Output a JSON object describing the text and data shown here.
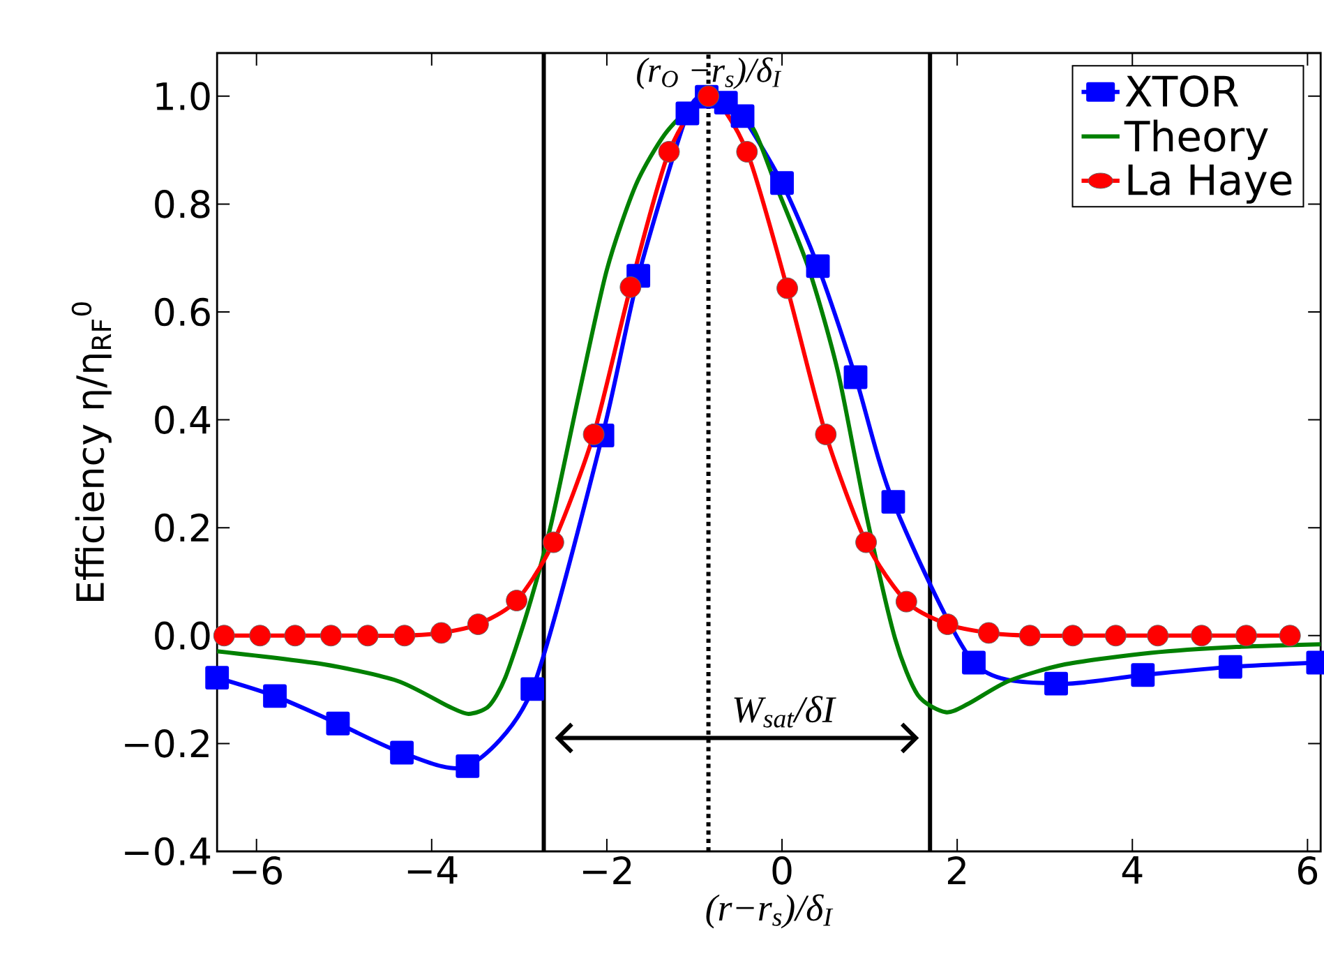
{
  "chart_data": {
    "type": "line",
    "xlabel": "(r−r$_{s}$)/δ$_{I}$",
    "ylabel": "Efficiency η/η$_{RF}$$^{0}$",
    "xlim": [
      -6.45,
      6.15
    ],
    "ylim": [
      -0.4,
      1.08
    ],
    "xticks": [
      {
        "value": -6,
        "label": "−6"
      },
      {
        "value": -4,
        "label": "−4"
      },
      {
        "value": -2,
        "label": "−2"
      },
      0,
      2,
      4,
      6
    ],
    "yticks": [
      {
        "value": -0.4,
        "label": "−0.4"
      },
      {
        "value": -0.2,
        "label": "−0.2"
      },
      "0.0",
      0.2,
      0.4,
      0.6,
      0.8,
      "1.0"
    ],
    "legend": "top right",
    "series": [
      {
        "name": "XTOR",
        "color": "#0000ff",
        "marker": "square",
        "x": [
          -6.45,
          -5.79,
          -5.07,
          -4.34,
          -3.59,
          -2.85,
          -2.05,
          -1.64,
          -1.08,
          -0.86,
          -0.64,
          -0.45,
          0.0,
          0.41,
          0.84,
          1.27,
          2.19,
          3.13,
          4.12,
          5.12,
          6.12
        ],
        "values": [
          -0.078,
          -0.112,
          -0.163,
          -0.217,
          -0.242,
          -0.099,
          0.371,
          0.667,
          0.968,
          0.999,
          0.988,
          0.963,
          0.839,
          0.685,
          0.479,
          0.248,
          -0.05,
          -0.089,
          -0.073,
          -0.058,
          -0.05
        ]
      },
      {
        "name": "Theory",
        "color": "#008000",
        "marker": "none",
        "x": [
          -6.45,
          -5.24,
          -4.39,
          -3.81,
          -3.58,
          -3.35,
          -3.16,
          -2.9,
          -2.64,
          -2.32,
          -2.0,
          -1.67,
          -1.34,
          -1.02,
          -0.69,
          -0.33,
          -0.07,
          0.31,
          0.64,
          0.96,
          1.29,
          1.55,
          1.87,
          2.13,
          2.59,
          3.24,
          4.21,
          5.19,
          6.15
        ],
        "values": [
          -0.029,
          -0.053,
          -0.084,
          -0.131,
          -0.145,
          -0.131,
          -0.078,
          0.048,
          0.204,
          0.446,
          0.678,
          0.835,
          0.929,
          0.981,
          0.997,
          0.94,
          0.835,
          0.678,
          0.488,
          0.226,
          -0.005,
          -0.11,
          -0.142,
          -0.126,
          -0.084,
          -0.053,
          -0.032,
          -0.021,
          -0.016
        ]
      },
      {
        "name": "La Haye",
        "color": "#ff0000",
        "marker": "circle",
        "x": [
          -6.37,
          -5.96,
          -5.56,
          -5.15,
          -4.73,
          -4.31,
          -3.89,
          -3.47,
          -3.03,
          -2.61,
          -2.15,
          -1.73,
          -1.29,
          -0.84,
          -0.4,
          0.06,
          0.5,
          0.96,
          1.42,
          1.89,
          2.36,
          2.83,
          3.32,
          3.81,
          4.29,
          4.79,
          5.3,
          5.8
        ],
        "values": [
          0.0,
          0.0,
          0.0,
          0.0,
          0.0,
          0.0,
          0.005,
          0.021,
          0.065,
          0.173,
          0.373,
          0.646,
          0.897,
          1.0,
          0.897,
          0.644,
          0.373,
          0.173,
          0.063,
          0.021,
          0.005,
          0.0,
          0.0,
          0.0,
          0.0,
          0.0,
          0.0,
          0.0
        ]
      }
    ],
    "ref_lines": [
      {
        "axis": "x",
        "value": -2.72,
        "color": "#000000",
        "line_style": "solid"
      },
      {
        "axis": "x",
        "value": -0.84,
        "color": "#000000",
        "line_style": "dotted",
        "label": "(r$_{O}$ −r$_{s}$)/δ$_{I}$"
      },
      {
        "axis": "x",
        "value": 1.69,
        "color": "#000000",
        "line_style": "solid"
      }
    ],
    "annotations": [
      "W$_{sat}$/δI"
    ]
  }
}
